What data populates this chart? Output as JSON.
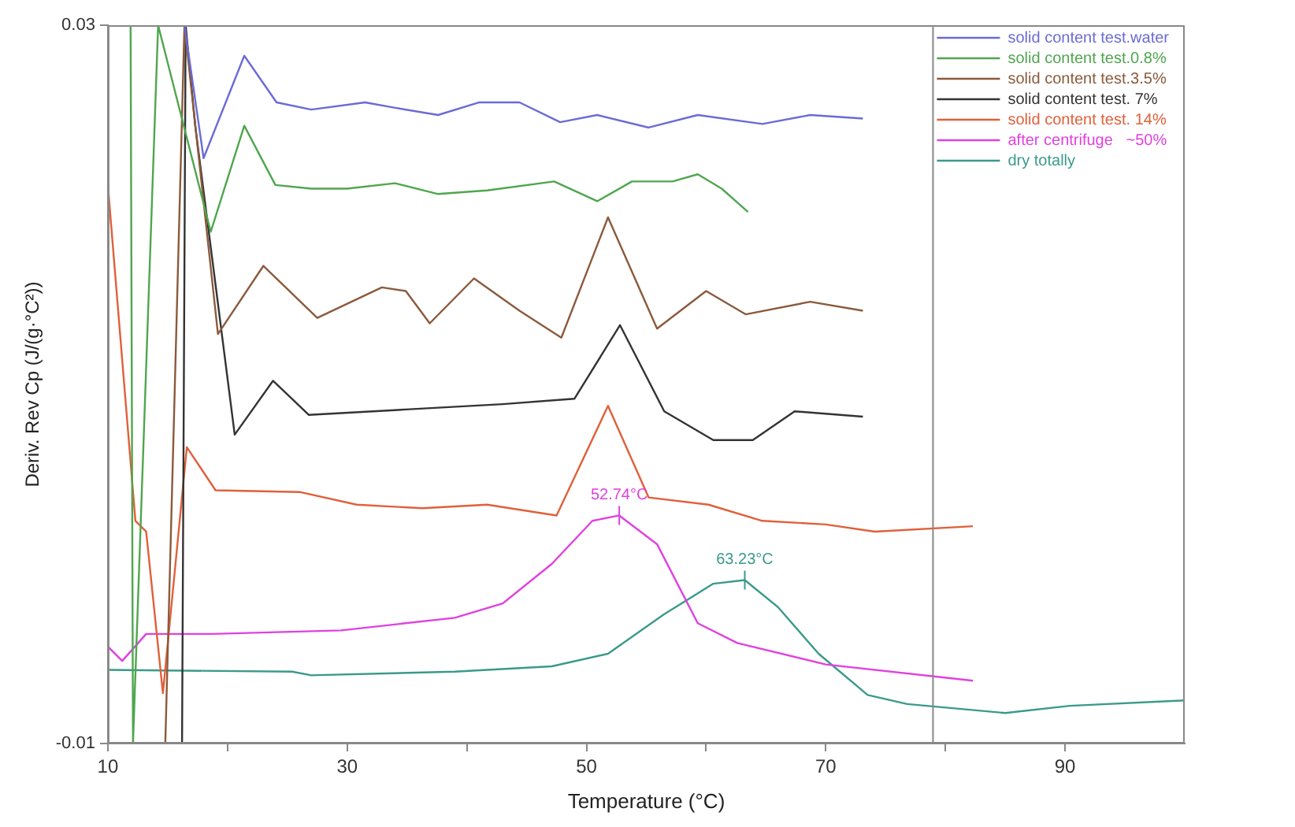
{
  "chart_data": {
    "type": "line",
    "xlabel": "Temperature (°C)",
    "ylabel": "Deriv. Rev Cp (J/(g·°C²))",
    "xlim": [
      10,
      100
    ],
    "xticks": [
      10,
      {
        "value": 20,
        "label": null
      },
      30,
      {
        "value": 40,
        "label": null
      },
      50,
      {
        "value": 60,
        "label": null
      },
      70,
      {
        "value": 80,
        "label": null
      },
      90
    ],
    "ylim": [
      -0.01,
      0.03
    ],
    "yticks": [
      0.03,
      -0.01
    ],
    "grid": false,
    "legend": "top right",
    "marker": "none",
    "line_style": "solid",
    "series": [
      {
        "name": "solid content test.water",
        "color": "#6b6bd6",
        "x": [
          16.4,
          18.0,
          21.4,
          24.1,
          27,
          31.5,
          34,
          37.6,
          41,
          44.4,
          47.8,
          50.9,
          55.2,
          59.3,
          64.7,
          68.7,
          73.1
        ],
        "values": [
          0.03,
          0.0226,
          0.0283,
          0.0257,
          0.0253,
          0.0257,
          0.0254,
          0.025,
          0.0257,
          0.0257,
          0.0246,
          0.025,
          0.0243,
          0.025,
          0.0245,
          0.025,
          0.0248
        ]
      },
      {
        "name": "solid content test.0.8%",
        "color": "#4fa64f",
        "x": [
          11.9,
          12.1,
          14.2,
          18.6,
          21.4,
          24,
          27,
          30,
          34,
          37.6,
          41.7,
          47.3,
          50.9,
          53.8,
          57.2,
          59.3,
          61.3,
          63.5
        ],
        "values": [
          0.03,
          -0.01,
          0.03,
          0.0185,
          0.0244,
          0.0211,
          0.0209,
          0.0209,
          0.0212,
          0.0206,
          0.0208,
          0.0213,
          0.0202,
          0.0213,
          0.0213,
          0.0217,
          0.0209,
          0.0196
        ]
      },
      {
        "name": "solid content test.3.5%",
        "color": "#8b5a3c",
        "x": [
          14.8,
          16.4,
          19.2,
          23,
          27.5,
          32.9,
          34.9,
          36.9,
          40.6,
          44.4,
          47.9,
          51.8,
          55.9,
          60,
          63.3,
          68.7,
          73.1
        ],
        "values": [
          -0.01,
          0.03,
          0.0128,
          0.0166,
          0.0137,
          0.0154,
          0.0152,
          0.0134,
          0.0159,
          0.0141,
          0.0126,
          0.0193,
          0.0131,
          0.0152,
          0.0139,
          0.0146,
          0.0141
        ]
      },
      {
        "name": "solid content test. 7%",
        "color": "#333333",
        "x": [
          16.2,
          16.5,
          17.3,
          20.6,
          23.8,
          26.8,
          34.9,
          43,
          49,
          52.8,
          56.5,
          60.6,
          63.9,
          67.4,
          73.1
        ],
        "values": [
          -0.01,
          0.03,
          0.0244,
          0.0072,
          0.0102,
          0.0083,
          0.0086,
          0.0089,
          0.0092,
          0.0133,
          0.0085,
          0.0069,
          0.0069,
          0.0085,
          0.0082
        ]
      },
      {
        "name": "solid content test. 14%",
        "color": "#e0603a",
        "x": [
          10,
          12.3,
          13.2,
          14.6,
          16.6,
          19,
          26.1,
          30.8,
          36.3,
          41.7,
          47.5,
          51.8,
          55.2,
          60.2,
          64.7,
          70,
          74.1,
          82.3
        ],
        "values": [
          0.0211,
          0.0024,
          0.0018,
          -0.0072,
          0.0065,
          0.0041,
          0.004,
          0.0033,
          0.0031,
          0.0033,
          0.0027,
          0.0088,
          0.0037,
          0.0033,
          0.0024,
          0.0022,
          0.0018,
          0.0021
        ]
      },
      {
        "name": "after centrifuge   ~50%",
        "color": "#e040e0",
        "x": [
          10,
          11.2,
          13.2,
          18.7,
          29.5,
          39,
          43,
          47.1,
          50.5,
          52.74,
          55.9,
          59.3,
          62.6,
          70,
          82.3
        ],
        "values": [
          -0.0046,
          -0.0054,
          -0.0039,
          -0.0039,
          -0.0037,
          -0.003,
          -0.0022,
          0,
          0.0024,
          0.0027,
          0.0011,
          -0.0033,
          -0.0044,
          -0.0056,
          -0.0065
        ]
      },
      {
        "name": "dry totally",
        "color": "#3a9a8a",
        "x": [
          10,
          25.4,
          27,
          39,
          47.1,
          51.8,
          56.5,
          60.6,
          63.23,
          66,
          69.4,
          73.5,
          76.8,
          85,
          90.4,
          100
        ],
        "values": [
          -0.0059,
          -0.006,
          -0.0062,
          -0.006,
          -0.0057,
          -0.005,
          -0.0028,
          -0.0011,
          -0.0009,
          -0.0024,
          -0.005,
          -0.0073,
          -0.0078,
          -0.0083,
          -0.0079,
          -0.0076
        ]
      }
    ],
    "annotations": [
      {
        "text": "52.74°C",
        "x": 52.74,
        "y": 0.0027
      },
      {
        "text": "63.23°C",
        "x": 63.23,
        "y": -0.0009
      }
    ]
  }
}
